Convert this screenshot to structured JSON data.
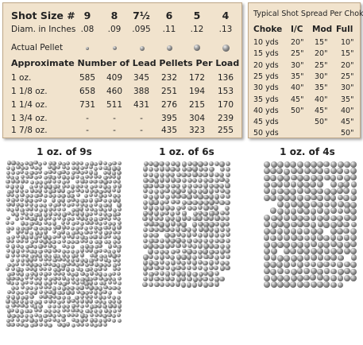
{
  "left_table": {
    "shot_size_label": "Shot Size #",
    "shot_sizes": [
      "9",
      "8",
      "7½",
      "6",
      "5",
      "4"
    ],
    "diameter_label": "Diam. in Inches",
    "diameters": [
      ".08",
      ".09",
      ".095",
      ".11",
      ".12",
      ".13"
    ],
    "actual_pellet_label": "Actual Pellet",
    "pellet_count_heading": "Approximate Number of Lead Pellets Per Load",
    "loads": [
      {
        "label": "1 oz.",
        "values": [
          "585",
          "409",
          "345",
          "232",
          "172",
          "136"
        ]
      },
      {
        "label": "1 1/8 oz.",
        "values": [
          "658",
          "460",
          "388",
          "251",
          "194",
          "153"
        ]
      },
      {
        "label": "1 1/4 oz.",
        "values": [
          "731",
          "511",
          "431",
          "276",
          "215",
          "170"
        ]
      },
      {
        "label": "1 3/4 oz.",
        "values": [
          "-",
          "-",
          "-",
          "395",
          "304",
          "239"
        ]
      },
      {
        "label": "1 7/8 oz.",
        "values": [
          "-",
          "-",
          "-",
          "435",
          "323",
          "255"
        ]
      }
    ]
  },
  "right_table": {
    "title": "Typical Shot Spread Per Choke",
    "headers": [
      "Choke",
      "I/C",
      "Mod",
      "Full"
    ],
    "rows": [
      {
        "yds": "10 yds",
        "ic": "20\"",
        "mod": "15\"",
        "full": "10\""
      },
      {
        "yds": "15 yds",
        "ic": "25\"",
        "mod": "20\"",
        "full": "15\""
      },
      {
        "yds": "20 yds",
        "ic": "30\"",
        "mod": "25\"",
        "full": "20\""
      },
      {
        "yds": "25 yds",
        "ic": "35\"",
        "mod": "30\"",
        "full": "25\""
      },
      {
        "yds": "30 yds",
        "ic": "40\"",
        "mod": "35\"",
        "full": "30\""
      },
      {
        "yds": "35 yds",
        "ic": "45\"",
        "mod": "40\"",
        "full": "35\""
      },
      {
        "yds": "40 yds",
        "ic": "50\"",
        "mod": "45\"",
        "full": "40\""
      },
      {
        "yds": "45 yds",
        "ic": "",
        "mod": "50\"",
        "full": "45\""
      },
      {
        "yds": "50 yds",
        "ic": "",
        "mod": "",
        "full": "50\""
      }
    ]
  },
  "patterns": [
    {
      "caption": "1 oz. of 9s"
    },
    {
      "caption": "1 oz. of 6s"
    },
    {
      "caption": "1 oz. of 4s"
    }
  ]
}
